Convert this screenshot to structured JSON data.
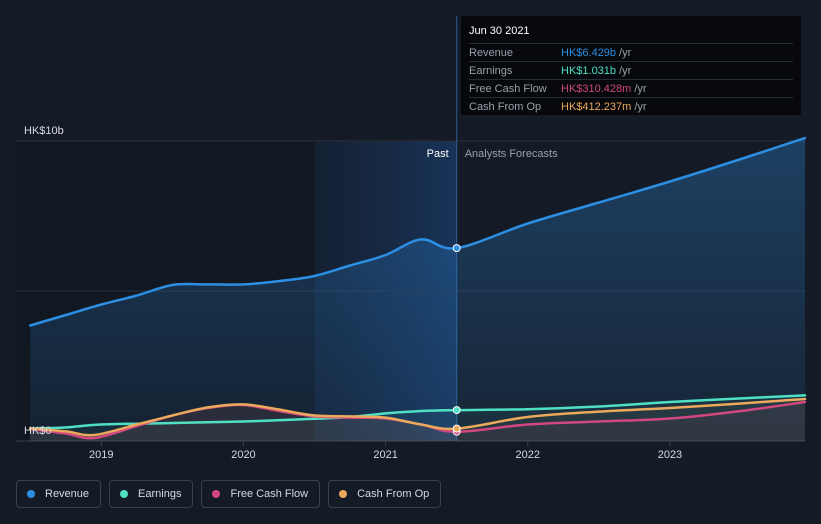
{
  "chart_data": {
    "type": "line",
    "y_unit_prefix": "HK$",
    "y_ticks": [
      {
        "value": 10,
        "label": "HK$10b"
      },
      {
        "value": 0,
        "label": "HK$0"
      }
    ],
    "ylim": [
      0,
      10
    ],
    "xlim": [
      2018.4,
      2023.95
    ],
    "x_ticks": [
      {
        "value": 2019,
        "label": "2019"
      },
      {
        "value": 2020,
        "label": "2020"
      },
      {
        "value": 2021,
        "label": "2021"
      },
      {
        "value": 2022,
        "label": "2022"
      },
      {
        "value": 2023,
        "label": "2023"
      }
    ],
    "past_label": "Past",
    "forecast_label": "Analysts Forecasts",
    "divider_x": 2021.5,
    "highlight_start_x": 2020.5,
    "grid": true,
    "legend_position": "bottom",
    "series": [
      {
        "name": "Revenue",
        "color": "#2d8fe3",
        "fill": true,
        "points": [
          [
            2018.5,
            3.85
          ],
          [
            2018.75,
            4.2
          ],
          [
            2019.0,
            4.55
          ],
          [
            2019.25,
            4.85
          ],
          [
            2019.5,
            5.2
          ],
          [
            2019.75,
            5.22
          ],
          [
            2020.0,
            5.22
          ],
          [
            2020.25,
            5.33
          ],
          [
            2020.5,
            5.5
          ],
          [
            2020.75,
            5.85
          ],
          [
            2021.0,
            6.2
          ],
          [
            2021.25,
            6.72
          ],
          [
            2021.5,
            6.429
          ],
          [
            2022.0,
            7.25
          ],
          [
            2022.5,
            7.95
          ],
          [
            2023.0,
            8.65
          ],
          [
            2023.5,
            9.4
          ],
          [
            2023.95,
            10.1
          ]
        ]
      },
      {
        "name": "Earnings",
        "color": "#4fe0c4",
        "fill": false,
        "points": [
          [
            2018.5,
            0.42
          ],
          [
            2018.75,
            0.45
          ],
          [
            2019.0,
            0.55
          ],
          [
            2019.5,
            0.6
          ],
          [
            2020.0,
            0.65
          ],
          [
            2020.5,
            0.74
          ],
          [
            2020.75,
            0.8
          ],
          [
            2021.0,
            0.92
          ],
          [
            2021.25,
            1.0
          ],
          [
            2021.5,
            1.031
          ],
          [
            2022.0,
            1.06
          ],
          [
            2022.5,
            1.15
          ],
          [
            2023.0,
            1.3
          ],
          [
            2023.5,
            1.42
          ],
          [
            2023.95,
            1.52
          ]
        ]
      },
      {
        "name": "Free Cash Flow",
        "color": "#d1477f",
        "fill": false,
        "points": [
          [
            2018.5,
            0.4
          ],
          [
            2018.75,
            0.25
          ],
          [
            2018.95,
            0.1
          ],
          [
            2019.25,
            0.5
          ],
          [
            2019.5,
            0.85
          ],
          [
            2019.75,
            1.1
          ],
          [
            2020.0,
            1.2
          ],
          [
            2020.25,
            1.0
          ],
          [
            2020.5,
            0.82
          ],
          [
            2020.75,
            0.78
          ],
          [
            2021.0,
            0.75
          ],
          [
            2021.25,
            0.55
          ],
          [
            2021.5,
            0.310428
          ],
          [
            2022.0,
            0.55
          ],
          [
            2022.5,
            0.65
          ],
          [
            2023.0,
            0.75
          ],
          [
            2023.5,
            1.0
          ],
          [
            2023.95,
            1.3
          ]
        ]
      },
      {
        "name": "Cash From Op",
        "color": "#eba95c",
        "fill": false,
        "points": [
          [
            2018.5,
            0.42
          ],
          [
            2018.75,
            0.32
          ],
          [
            2018.95,
            0.2
          ],
          [
            2019.25,
            0.55
          ],
          [
            2019.5,
            0.85
          ],
          [
            2019.75,
            1.12
          ],
          [
            2020.0,
            1.22
          ],
          [
            2020.25,
            1.05
          ],
          [
            2020.5,
            0.85
          ],
          [
            2020.75,
            0.82
          ],
          [
            2021.0,
            0.78
          ],
          [
            2021.25,
            0.55
          ],
          [
            2021.5,
            0.412237
          ],
          [
            2022.0,
            0.8
          ],
          [
            2022.5,
            0.98
          ],
          [
            2023.0,
            1.1
          ],
          [
            2023.5,
            1.25
          ],
          [
            2023.95,
            1.4
          ]
        ]
      }
    ]
  },
  "tooltip": {
    "date": "Jun 30 2021",
    "rows": [
      {
        "label": "Revenue",
        "value": "HK$6.429b",
        "unit": "/yr",
        "color": "#2d8fe3"
      },
      {
        "label": "Earnings",
        "value": "HK$1.031b",
        "unit": "/yr",
        "color": "#4fe0c4"
      },
      {
        "label": "Free Cash Flow",
        "value": "HK$310.428m",
        "unit": "/yr",
        "color": "#d1477f"
      },
      {
        "label": "Cash From Op",
        "value": "HK$412.237m",
        "unit": "/yr",
        "color": "#eba95c"
      }
    ]
  },
  "legend": [
    {
      "label": "Revenue",
      "color": "#2d8fe3"
    },
    {
      "label": "Earnings",
      "color": "#4fe0c4"
    },
    {
      "label": "Free Cash Flow",
      "color": "#d1477f"
    },
    {
      "label": "Cash From Op",
      "color": "#eba95c"
    }
  ]
}
